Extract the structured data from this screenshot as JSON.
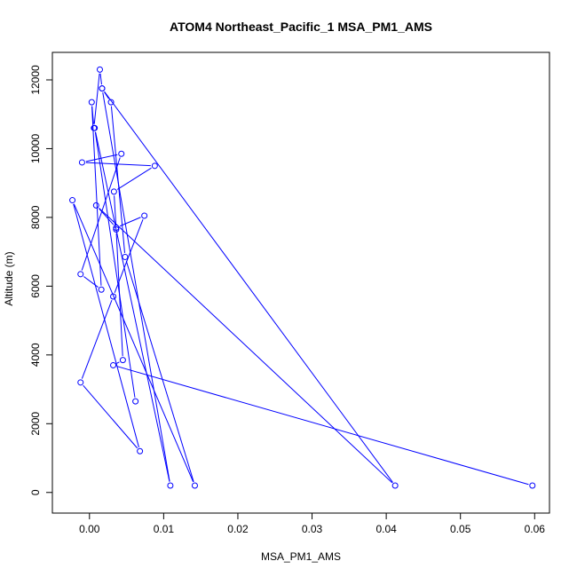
{
  "chart_data": {
    "type": "line",
    "title": "ATOM4 Northeast_Pacific_1 MSA_PM1_AMS",
    "xlabel": "MSA_PM1_AMS",
    "ylabel": "Altitude (m)",
    "xlim": [
      -0.005,
      0.062
    ],
    "ylim": [
      -600,
      12800
    ],
    "x_ticks": [
      0.0,
      0.01,
      0.02,
      0.03,
      0.04,
      0.05,
      0.06
    ],
    "x_tick_labels": [
      "0.00",
      "0.01",
      "0.02",
      "0.03",
      "0.04",
      "0.05",
      "0.06"
    ],
    "y_ticks": [
      0,
      2000,
      4000,
      6000,
      8000,
      10000,
      12000
    ],
    "y_tick_labels": [
      "0",
      "2000",
      "4000",
      "6000",
      "8000",
      "10000",
      "12000"
    ],
    "grid": false,
    "legend": "none",
    "series_color": "#0000ff",
    "series": [
      {
        "x": [
          0.0597,
          0.0032,
          0.0045,
          0.0036,
          0.0033,
          0.0088,
          -0.001,
          0.0043,
          -0.0012,
          0.0016,
          0.0003,
          0.0006,
          0.0014,
          0.0017,
          0.0029,
          0.0048,
          0.0142,
          -0.0023,
          0.0068,
          -0.0012,
          0.0032,
          0.0074,
          0.0036,
          0.0009,
          0.0412,
          0.0017,
          0.0109,
          0.0007,
          0.0062
        ],
        "y": [
          200,
          3700,
          3850,
          7650,
          8750,
          9500,
          9600,
          9850,
          6350,
          5900,
          11350,
          10600,
          12300,
          11750,
          11350,
          6850,
          200,
          8500,
          1200,
          3200,
          5700,
          8050,
          7700,
          8350,
          200,
          11750,
          200,
          10600,
          2650
        ]
      }
    ]
  }
}
